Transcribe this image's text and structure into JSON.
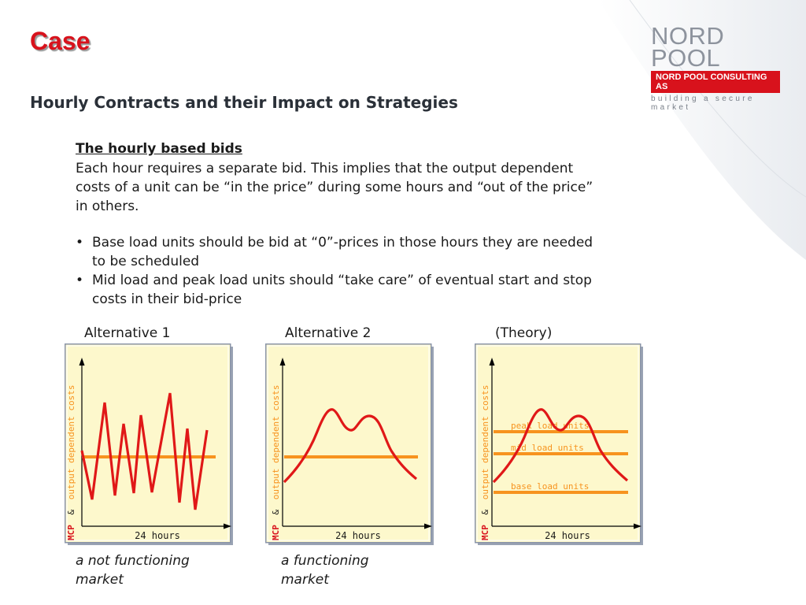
{
  "slide": {
    "title": "Case",
    "subtitle": "Hourly Contracts and their Impact on Strategies"
  },
  "logo": {
    "name": "NORD POOL",
    "consulting": "NORD POOL CONSULTING AS",
    "tagline": "building a secure market",
    "brand_color": "#d8121c"
  },
  "section": {
    "heading": "The hourly based bids",
    "paragraph": "Each hour requires a separate bid. This implies that the output dependent costs of a unit can be “in the price” during some hours and “out of the price” in others.",
    "bullets": [
      "Base load units should be bid at “0”-prices in those hours they are needed to be scheduled",
      "Mid load and peak load units should “take care” of eventual start and stop costs in their bid-price"
    ]
  },
  "panels": [
    {
      "title": "Alternative 1",
      "ylabel_prefix": "MCP",
      "ylabel_amp": "&",
      "ylabel_suffix": "output dependent costs",
      "xlabel": "24 hours",
      "caption_line1": "a not functioning",
      "caption_line2": "market",
      "levels": []
    },
    {
      "title": "Alternative 2",
      "ylabel_prefix": "MCP",
      "ylabel_amp": "&",
      "ylabel_suffix": "output dependent costs",
      "xlabel": "24 hours",
      "caption_line1": "a functioning",
      "caption_line2": "market",
      "levels": []
    },
    {
      "title": "(Theory)",
      "ylabel_prefix": "MCP",
      "ylabel_amp": "&",
      "ylabel_suffix": "output dependent costs",
      "xlabel": "24 hours",
      "caption_line1": "",
      "caption_line2": "",
      "levels": [
        "peak load units",
        "mid load units",
        "base load units"
      ]
    }
  ],
  "colors": {
    "panel_fill": "#fdf8cc",
    "panel_border": "#8b95a8",
    "price_curve": "#e01818",
    "cost_line": "#f7931e",
    "axis_label": "#f7931e",
    "mcp_label": "#d8121c"
  }
}
